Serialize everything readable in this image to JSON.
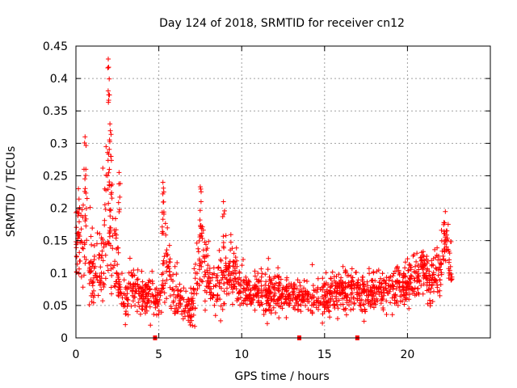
{
  "chart_data": {
    "type": "scatter",
    "title": "Day 124 of 2018, SRMTID for receiver cn12",
    "xlabel": "GPS time / hours",
    "ylabel": "SRMTID / TECUs",
    "xlim": [
      0,
      25
    ],
    "ylim": [
      0,
      0.45
    ],
    "xticks": [
      0,
      5,
      10,
      15,
      20
    ],
    "yticks": [
      0,
      0.05,
      0.1,
      0.15,
      0.2,
      0.25,
      0.3,
      0.35,
      0.4,
      0.45
    ],
    "grid": true,
    "marker": "plus",
    "color": "#ff0000",
    "data_gaps_hours": [
      4.75,
      13.45,
      16.95
    ],
    "envelope": {
      "description": "approximate dense scatter, hours vs SRMTID (TECU)",
      "x": [
        0.0,
        0.3,
        0.6,
        1.0,
        1.5,
        1.9,
        2.1,
        2.5,
        3.0,
        3.5,
        4.0,
        4.5,
        5.0,
        5.3,
        5.6,
        6.0,
        6.5,
        7.0,
        7.5,
        7.8,
        8.2,
        8.8,
        9.5,
        10.0,
        11.0,
        12.0,
        13.0,
        14.0,
        15.0,
        16.0,
        17.0,
        18.0,
        19.0,
        20.0,
        20.5,
        21.0,
        21.5,
        22.0,
        22.3,
        22.7
      ],
      "center": [
        0.14,
        0.16,
        0.14,
        0.1,
        0.1,
        0.2,
        0.16,
        0.09,
        0.06,
        0.08,
        0.06,
        0.07,
        0.05,
        0.09,
        0.1,
        0.06,
        0.05,
        0.05,
        0.1,
        0.12,
        0.07,
        0.1,
        0.1,
        0.07,
        0.07,
        0.07,
        0.065,
        0.06,
        0.06,
        0.07,
        0.07,
        0.07,
        0.075,
        0.08,
        0.1,
        0.1,
        0.09,
        0.1,
        0.14,
        0.1
      ],
      "spread": [
        0.04,
        0.07,
        0.06,
        0.04,
        0.04,
        0.12,
        0.09,
        0.04,
        0.03,
        0.03,
        0.025,
        0.03,
        0.02,
        0.05,
        0.06,
        0.03,
        0.025,
        0.03,
        0.06,
        0.06,
        0.03,
        0.05,
        0.04,
        0.03,
        0.03,
        0.03,
        0.025,
        0.025,
        0.025,
        0.03,
        0.025,
        0.025,
        0.025,
        0.03,
        0.035,
        0.03,
        0.03,
        0.035,
        0.04,
        0.04
      ]
    },
    "peaks": [
      {
        "x": 0.15,
        "y": 0.23
      },
      {
        "x": 0.55,
        "y": 0.31
      },
      {
        "x": 0.6,
        "y": 0.26
      },
      {
        "x": 1.95,
        "y": 0.43
      },
      {
        "x": 1.98,
        "y": 0.375
      },
      {
        "x": 2.05,
        "y": 0.33
      },
      {
        "x": 2.1,
        "y": 0.28
      },
      {
        "x": 2.6,
        "y": 0.255
      },
      {
        "x": 5.25,
        "y": 0.24
      },
      {
        "x": 5.3,
        "y": 0.225
      },
      {
        "x": 7.5,
        "y": 0.233
      },
      {
        "x": 7.55,
        "y": 0.21
      },
      {
        "x": 8.9,
        "y": 0.21
      },
      {
        "x": 22.2,
        "y": 0.178
      }
    ]
  }
}
